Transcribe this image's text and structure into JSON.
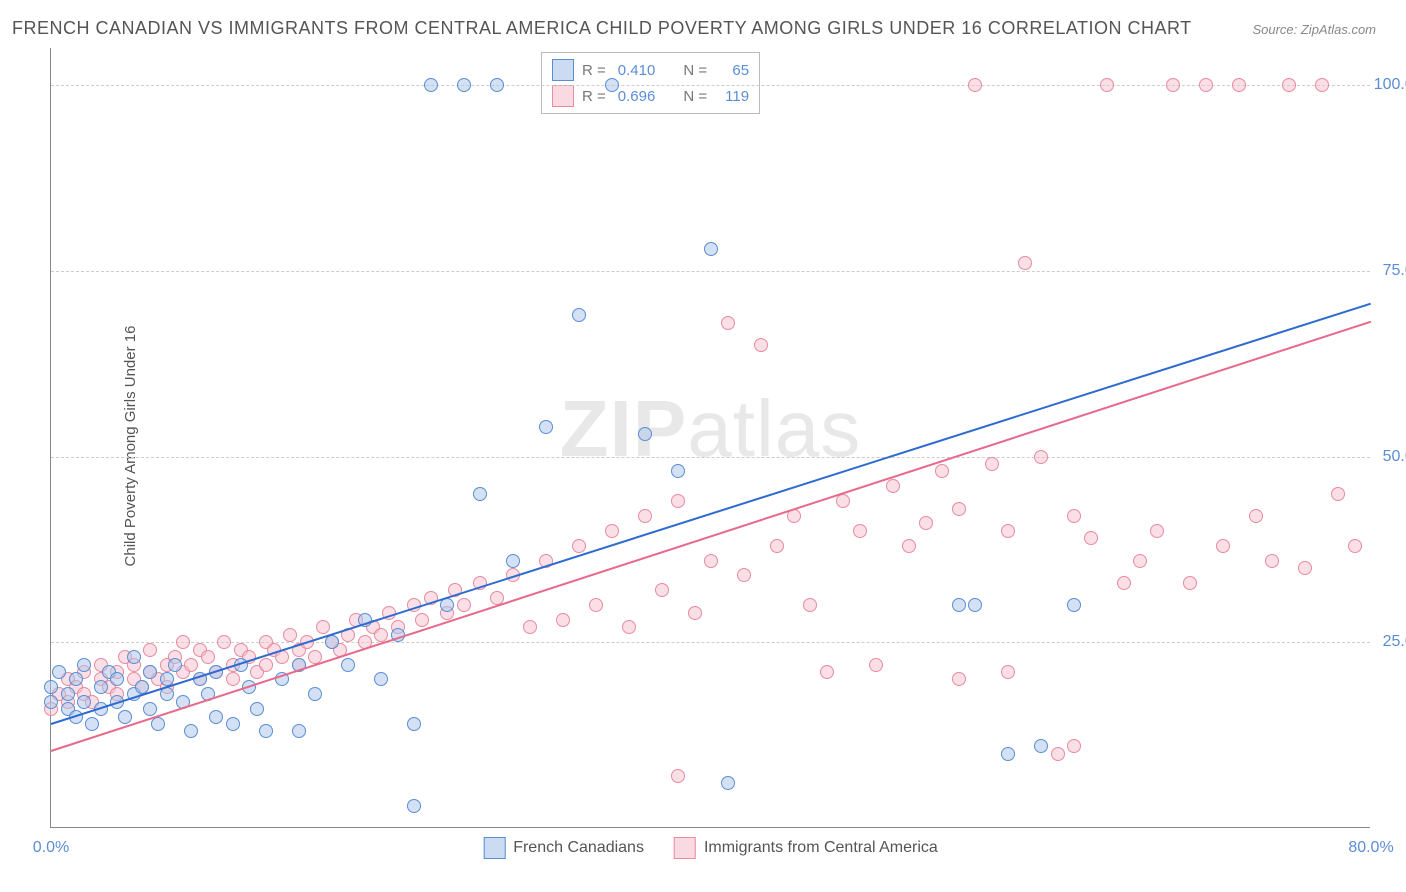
{
  "title": "FRENCH CANADIAN VS IMMIGRANTS FROM CENTRAL AMERICA CHILD POVERTY AMONG GIRLS UNDER 16 CORRELATION CHART",
  "source": "Source: ZipAtlas.com",
  "ylabel": "Child Poverty Among Girls Under 16",
  "watermark_bold": "ZIP",
  "watermark_rest": "atlas",
  "chart": {
    "type": "scatter",
    "xlim": [
      0,
      80
    ],
    "ylim": [
      0,
      105
    ],
    "yticks": [
      {
        "v": 25,
        "label": "25.0%"
      },
      {
        "v": 50,
        "label": "50.0%"
      },
      {
        "v": 75,
        "label": "75.0%"
      },
      {
        "v": 100,
        "label": "100.0%"
      }
    ],
    "xticks": [
      {
        "v": 0,
        "label": "0.0%"
      },
      {
        "v": 80,
        "label": "80.0%"
      }
    ],
    "grid_color": "#cccccc",
    "background_color": "#ffffff",
    "axis_color": "#888888",
    "tick_color": "#5b8dd6",
    "dot_radius": 7,
    "dot_stroke_width": 1.5,
    "dot_fill_opacity": 0.25,
    "series": [
      {
        "id": "french",
        "name": "French Canadians",
        "color_fill": "#a9c4ea",
        "color_stroke": "#5b8dd6",
        "reg_line_color": "#2e6bd1",
        "reg_start": {
          "x": 0,
          "y": 14.2
        },
        "reg_end": {
          "x": 80,
          "y": 70.8
        },
        "R": "0.410",
        "N": "65",
        "points": [
          [
            0,
            17
          ],
          [
            0,
            19
          ],
          [
            0.5,
            21
          ],
          [
            1,
            16
          ],
          [
            1,
            18
          ],
          [
            1.5,
            15
          ],
          [
            1.5,
            20
          ],
          [
            2,
            17
          ],
          [
            2,
            22
          ],
          [
            2.5,
            14
          ],
          [
            3,
            19
          ],
          [
            3,
            16
          ],
          [
            3.5,
            21
          ],
          [
            4,
            17
          ],
          [
            4,
            20
          ],
          [
            4.5,
            15
          ],
          [
            5,
            18
          ],
          [
            5,
            23
          ],
          [
            5.5,
            19
          ],
          [
            6,
            16
          ],
          [
            6,
            21
          ],
          [
            6.5,
            14
          ],
          [
            7,
            20
          ],
          [
            7,
            18
          ],
          [
            7.5,
            22
          ],
          [
            8,
            17
          ],
          [
            8.5,
            13
          ],
          [
            9,
            20
          ],
          [
            9.5,
            18
          ],
          [
            10,
            15
          ],
          [
            10,
            21
          ],
          [
            11,
            14
          ],
          [
            11.5,
            22
          ],
          [
            12,
            19
          ],
          [
            12.5,
            16
          ],
          [
            13,
            13
          ],
          [
            14,
            20
          ],
          [
            15,
            22
          ],
          [
            15,
            13
          ],
          [
            16,
            18
          ],
          [
            17,
            25
          ],
          [
            18,
            22
          ],
          [
            19,
            28
          ],
          [
            20,
            20
          ],
          [
            21,
            26
          ],
          [
            22,
            14
          ],
          [
            22,
            3
          ],
          [
            23,
            100
          ],
          [
            24,
            30
          ],
          [
            25,
            100
          ],
          [
            26,
            45
          ],
          [
            27,
            100
          ],
          [
            28,
            36
          ],
          [
            30,
            54
          ],
          [
            32,
            69
          ],
          [
            34,
            100
          ],
          [
            36,
            53
          ],
          [
            38,
            48
          ],
          [
            40,
            78
          ],
          [
            41,
            6
          ],
          [
            55,
            30
          ],
          [
            56,
            30
          ],
          [
            58,
            10
          ],
          [
            60,
            11
          ],
          [
            62,
            30
          ]
        ]
      },
      {
        "id": "central",
        "name": "Immigrants from Central America",
        "color_fill": "#f6c2ce",
        "color_stroke": "#e88aa0",
        "reg_line_color": "#e76a8a",
        "reg_start": {
          "x": 0,
          "y": 10.5
        },
        "reg_end": {
          "x": 80,
          "y": 68.3
        },
        "R": "0.696",
        "N": "119",
        "points": [
          [
            0,
            16
          ],
          [
            0.5,
            18
          ],
          [
            1,
            17
          ],
          [
            1,
            20
          ],
          [
            1.5,
            19
          ],
          [
            2,
            18
          ],
          [
            2,
            21
          ],
          [
            2.5,
            17
          ],
          [
            3,
            20
          ],
          [
            3,
            22
          ],
          [
            3.5,
            19
          ],
          [
            4,
            21
          ],
          [
            4,
            18
          ],
          [
            4.5,
            23
          ],
          [
            5,
            20
          ],
          [
            5,
            22
          ],
          [
            5.5,
            19
          ],
          [
            6,
            21
          ],
          [
            6,
            24
          ],
          [
            6.5,
            20
          ],
          [
            7,
            22
          ],
          [
            7,
            19
          ],
          [
            7.5,
            23
          ],
          [
            8,
            21
          ],
          [
            8,
            25
          ],
          [
            8.5,
            22
          ],
          [
            9,
            20
          ],
          [
            9,
            24
          ],
          [
            9.5,
            23
          ],
          [
            10,
            21
          ],
          [
            10.5,
            25
          ],
          [
            11,
            22
          ],
          [
            11,
            20
          ],
          [
            11.5,
            24
          ],
          [
            12,
            23
          ],
          [
            12.5,
            21
          ],
          [
            13,
            25
          ],
          [
            13,
            22
          ],
          [
            13.5,
            24
          ],
          [
            14,
            23
          ],
          [
            14.5,
            26
          ],
          [
            15,
            24
          ],
          [
            15,
            22
          ],
          [
            15.5,
            25
          ],
          [
            16,
            23
          ],
          [
            16.5,
            27
          ],
          [
            17,
            25
          ],
          [
            17.5,
            24
          ],
          [
            18,
            26
          ],
          [
            18.5,
            28
          ],
          [
            19,
            25
          ],
          [
            19.5,
            27
          ],
          [
            20,
            26
          ],
          [
            20.5,
            29
          ],
          [
            21,
            27
          ],
          [
            22,
            30
          ],
          [
            22.5,
            28
          ],
          [
            23,
            31
          ],
          [
            24,
            29
          ],
          [
            24.5,
            32
          ],
          [
            25,
            30
          ],
          [
            26,
            33
          ],
          [
            27,
            31
          ],
          [
            28,
            34
          ],
          [
            29,
            27
          ],
          [
            30,
            36
          ],
          [
            31,
            28
          ],
          [
            32,
            38
          ],
          [
            33,
            30
          ],
          [
            34,
            40
          ],
          [
            35,
            27
          ],
          [
            36,
            42
          ],
          [
            37,
            32
          ],
          [
            38,
            44
          ],
          [
            38,
            7
          ],
          [
            39,
            29
          ],
          [
            40,
            36
          ],
          [
            41,
            68
          ],
          [
            42,
            34
          ],
          [
            43,
            65
          ],
          [
            44,
            38
          ],
          [
            45,
            42
          ],
          [
            46,
            30
          ],
          [
            47,
            21
          ],
          [
            48,
            44
          ],
          [
            49,
            40
          ],
          [
            50,
            22
          ],
          [
            51,
            46
          ],
          [
            52,
            38
          ],
          [
            53,
            41
          ],
          [
            54,
            48
          ],
          [
            55,
            43
          ],
          [
            56,
            100
          ],
          [
            57,
            49
          ],
          [
            58,
            40
          ],
          [
            59,
            76
          ],
          [
            60,
            50
          ],
          [
            61,
            10
          ],
          [
            62,
            42
          ],
          [
            63,
            39
          ],
          [
            64,
            100
          ],
          [
            65,
            33
          ],
          [
            66,
            36
          ],
          [
            67,
            40
          ],
          [
            68,
            100
          ],
          [
            69,
            33
          ],
          [
            70,
            100
          ],
          [
            71,
            38
          ],
          [
            72,
            100
          ],
          [
            73,
            42
          ],
          [
            74,
            36
          ],
          [
            75,
            100
          ],
          [
            76,
            35
          ],
          [
            77,
            100
          ],
          [
            78,
            45
          ],
          [
            79,
            38
          ],
          [
            62,
            11
          ],
          [
            58,
            21
          ],
          [
            55,
            20
          ]
        ]
      }
    ]
  },
  "legend_top": {
    "rows": [
      {
        "swatch_series": "french",
        "R_label": "R =",
        "R": "0.410",
        "N_label": "N =",
        "N": "65"
      },
      {
        "swatch_series": "central",
        "R_label": "R =",
        "R": "0.696",
        "N_label": "N =",
        "N": "119"
      }
    ]
  },
  "legend_bottom": [
    {
      "series": "french",
      "label": "French Canadians"
    },
    {
      "series": "central",
      "label": "Immigrants from Central America"
    }
  ]
}
